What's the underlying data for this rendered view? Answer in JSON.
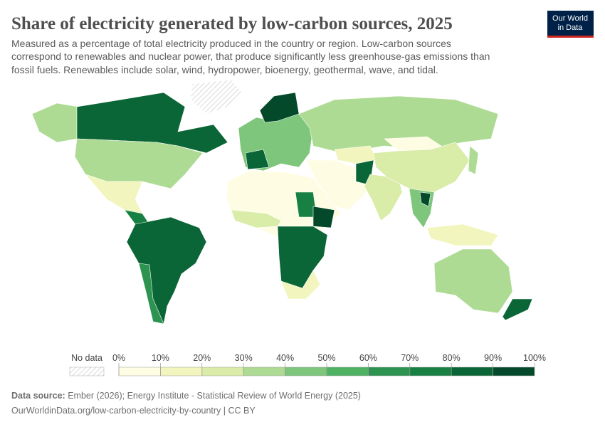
{
  "header": {
    "title": "Share of electricity generated by low-carbon sources, 2025",
    "subtitle_lines": [
      "Measured as a percentage of total electricity produced in the country or region. Low-carbon sources",
      "correspond to renewables and nuclear power, that produce significantly less greenhouse-gas emissions than",
      "fossil fuels. Renewables include solar, wind, hydropower, bioenergy, geothermal, wave, and tidal."
    ],
    "logo_lines": [
      "Our World",
      "in Data"
    ]
  },
  "legend": {
    "no_data": "No data",
    "ticks": [
      {
        "value": 0,
        "label": "0%"
      },
      {
        "value": 10,
        "label": "10%"
      },
      {
        "value": 20,
        "label": "20%"
      },
      {
        "value": 30,
        "label": "30%"
      },
      {
        "value": 40,
        "label": "40%"
      },
      {
        "value": 50,
        "label": "50%"
      },
      {
        "value": 60,
        "label": "60%"
      },
      {
        "value": 70,
        "label": "70%"
      },
      {
        "value": 80,
        "label": "80%"
      },
      {
        "value": 90,
        "label": "90%"
      },
      {
        "value": 100,
        "label": "100%"
      }
    ],
    "colors": [
      "#fefde3",
      "#f2f5bd",
      "#d9eca8",
      "#aedb93",
      "#7ec67b",
      "#4fb263",
      "#2d9350",
      "#178042",
      "#0b6637",
      "#03492a"
    ]
  },
  "footer": {
    "source_label": "Data source:",
    "source": "Ember (2026); Energy Institute - Statistical Review of World Energy (2025)",
    "url": "OurWorldinData.org/low-carbon-electricity-by-country | CC BY"
  }
}
